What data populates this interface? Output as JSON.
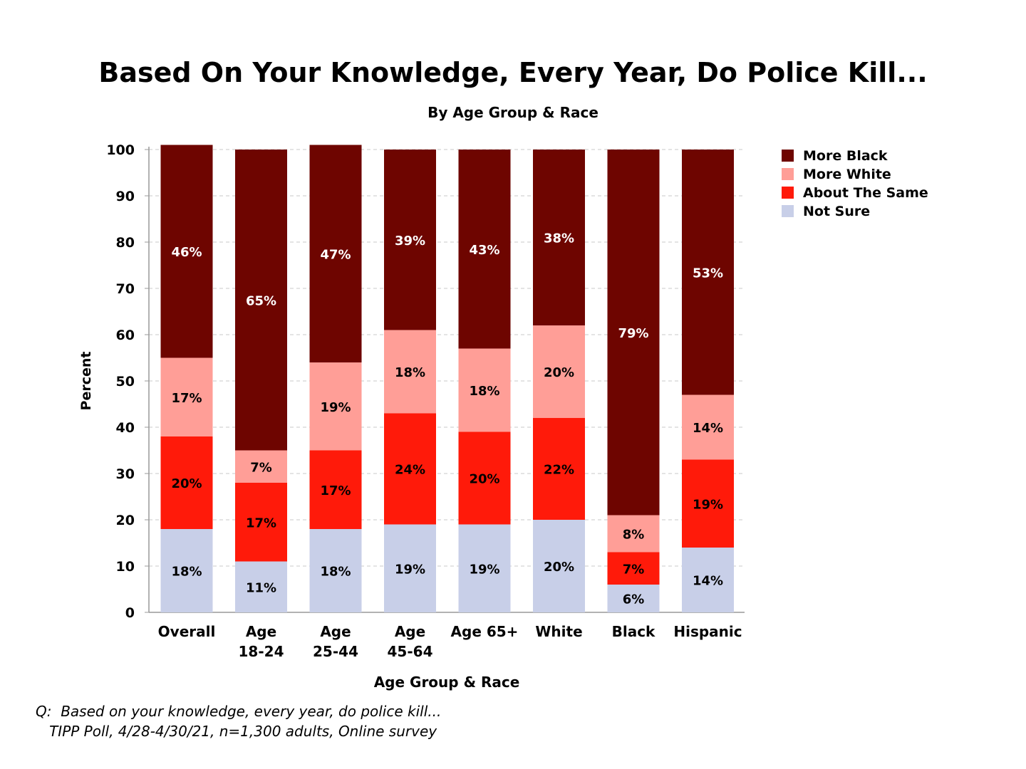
{
  "chart_data": {
    "type": "bar",
    "stacked": true,
    "title": "Based On Your Knowledge, Every Year, Do Police Kill...",
    "subtitle": "By Age Group & Race",
    "xlabel": "Age Group & Race",
    "ylabel": "Percent",
    "ylim": [
      0,
      100
    ],
    "yticks": [
      0,
      10,
      20,
      30,
      40,
      50,
      60,
      70,
      80,
      90,
      100
    ],
    "grid": true,
    "legend_position": "top-right",
    "categories": [
      [
        "Overall"
      ],
      [
        "Age",
        "18-24"
      ],
      [
        "Age",
        "25-44"
      ],
      [
        "Age",
        "45-64"
      ],
      [
        "Age 65+"
      ],
      [
        "White"
      ],
      [
        "Black"
      ],
      [
        "Hispanic"
      ]
    ],
    "series": [
      {
        "name": "Not Sure",
        "color": "#c8cfe8",
        "label_color": "#000000",
        "values": [
          18,
          11,
          18,
          19,
          19,
          20,
          6,
          14
        ]
      },
      {
        "name": "About The Same",
        "color": "#ff1a0a",
        "label_color": "#000000",
        "values": [
          20,
          17,
          17,
          24,
          20,
          22,
          7,
          19
        ]
      },
      {
        "name": "More White",
        "color": "#ff9e97",
        "label_color": "#000000",
        "values": [
          17,
          7,
          19,
          18,
          18,
          20,
          8,
          14
        ]
      },
      {
        "name": "More Black",
        "color": "#6e0500",
        "label_color": "#ffffff",
        "values": [
          46,
          65,
          47,
          39,
          43,
          38,
          79,
          53
        ]
      }
    ],
    "legend_order": [
      "More Black",
      "More White",
      "About The Same",
      "Not Sure"
    ],
    "label_suffix": "%"
  },
  "footnote": {
    "line1": "Q:  Based on your knowledge, every year, do police kill...",
    "line2": "   TIPP Poll, 4/28-4/30/21, n=1,300 adults, Online survey"
  }
}
